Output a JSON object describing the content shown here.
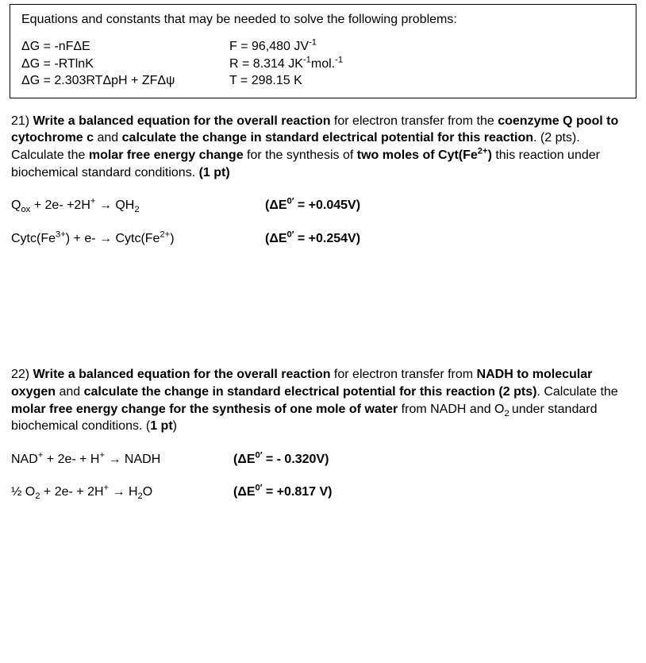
{
  "constants": {
    "heading": "Equations and constants that may be needed to solve the following problems:",
    "left": {
      "r1_a": "ΔG = -nFΔE",
      "r2_a": "ΔG = -RTlnK",
      "r3_a": "ΔG = 2.303RTΔpH + ZFΔψ"
    },
    "right": {
      "r1_pre": "F = 96,480 JV",
      "r1_sup": "-1",
      "r2_pre": "R = 8.314 JK",
      "r2_sup1": "-1",
      "r2_mid": "mol.",
      "r2_sup2": "-1",
      "r3_a": "T = 298.15 K"
    }
  },
  "q21": {
    "num": "21) ",
    "b1": "Write a balanced equation for the overall reaction",
    "t1": " for electron transfer from the ",
    "b2": "coenzyme Q pool to cytochrome c",
    "t2": " and ",
    "b3": "calculate the change in standard electrical potential for this reaction",
    "t3": ". (2 pts). Calculate the ",
    "b4": "molar free energy change",
    "t4": " for the synthesis of ",
    "b5": "two moles of Cyt(Fe",
    "b5_sup": "2+",
    "b5_end": ")",
    "t5": "  this reaction under biochemical standard conditions. ",
    "b6": "(1 pt)",
    "eq1": {
      "a": "Q",
      "sub1": "ox",
      "b": " + 2e- +2H",
      "sup1": "+",
      "c": " → QH",
      "sub2": "2",
      "de_pre": "(ΔE",
      "de_sup": "0′",
      "de_val": " = +0.045V)"
    },
    "eq2": {
      "a": "Cytc(Fe",
      "sup1": "3+",
      "b": ") + e-  →  Cytc(Fe",
      "sup2": "2+",
      "c": ")",
      "de_pre": "(ΔE",
      "de_sup": "0′",
      "de_val": " = +0.254V)"
    }
  },
  "q22": {
    "num": "22) ",
    "b1": "Write a balanced equation for the overall reaction",
    "t1": " for electron transfer from ",
    "b2": "NADH to molecular oxygen",
    "t2": " and ",
    "b3": "calculate the change in standard electrical potential for this reaction (2 pts)",
    "t3": ". Calculate the ",
    "b4": "molar free energy change for the synthesis of one mole of water",
    "t4": " from NADH and O",
    "sub1": "2 ",
    "t5": "under standard biochemical conditions. ",
    "b5": "(",
    "b6": "1 pt",
    "b7": ")",
    "eq1": {
      "a": "NAD",
      "sup1": "+",
      "b": " + 2e- + H",
      "sup2": "+",
      "c": "  →  NADH",
      "de_pre": "(ΔE",
      "de_sup": "0′",
      "de_val": " = - 0.320V)"
    },
    "eq2": {
      "a": "½ O",
      "sub1": "2",
      "b": "  + 2e- + 2H",
      "sup1": "+",
      "c": " →  H",
      "sub2": "2",
      "d": "O",
      "de_pre": "(ΔE",
      "de_sup": "0′",
      "de_val": " = +0.817 V)"
    }
  }
}
